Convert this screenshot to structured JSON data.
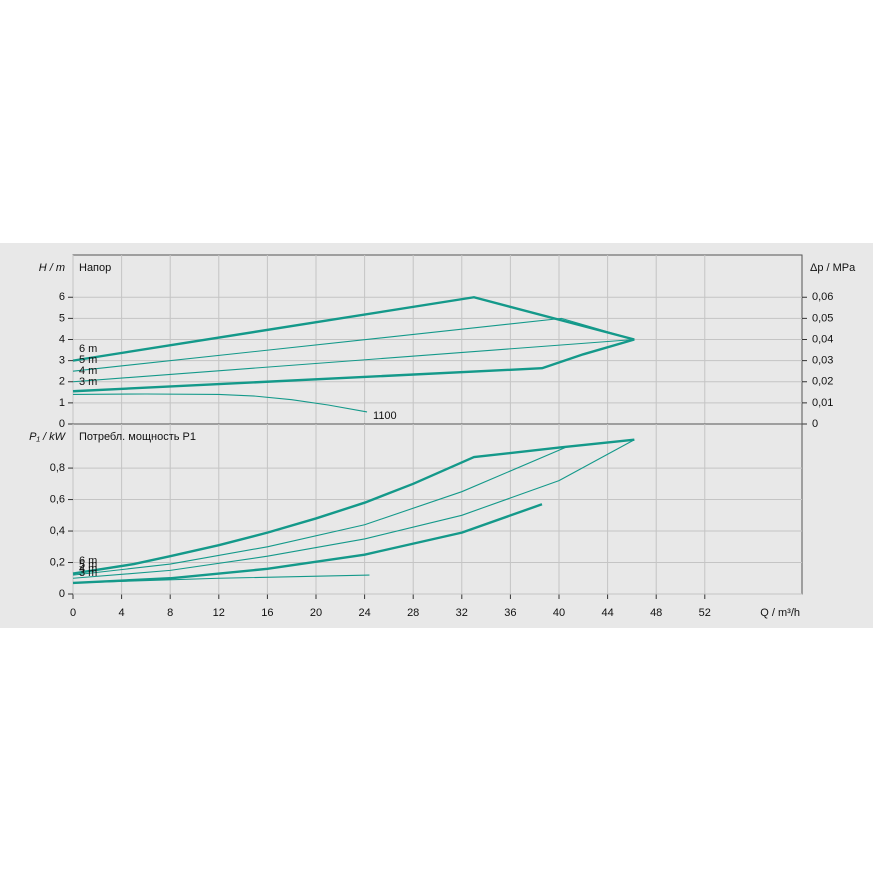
{
  "chart_data": [
    {
      "type": "line",
      "title": "Напор",
      "y_label": "H / m",
      "y2_label": "Δp / MPa",
      "xlim": [
        0,
        60
      ],
      "xticks": [
        0,
        4,
        8,
        12,
        16,
        20,
        24,
        28,
        32,
        36,
        40,
        44,
        48,
        52
      ],
      "ylim": [
        0,
        8
      ],
      "yticks": [
        0,
        1,
        2,
        3,
        4,
        5,
        6
      ],
      "y2lim": [
        0,
        0.08
      ],
      "y2ticks": [
        0,
        {
          "value": 0.01,
          "label": "0,01"
        },
        {
          "value": 0.02,
          "label": "0,02"
        },
        {
          "value": 0.03,
          "label": "0,03"
        },
        {
          "value": 0.04,
          "label": "0,04"
        },
        {
          "value": 0.05,
          "label": "0,05"
        },
        {
          "value": 0.06,
          "label": "0,06"
        }
      ],
      "grid": true,
      "series": [
        {
          "name": "6 m",
          "color": "#14998a",
          "thick": true,
          "x": [
            0,
            33,
            46.2
          ],
          "values": [
            3.0,
            6.0,
            4.0
          ]
        },
        {
          "name": "5 m",
          "color": "#14998a",
          "thick": false,
          "x": [
            0,
            40.2,
            46.2
          ],
          "values": [
            2.5,
            5.0,
            4.0
          ]
        },
        {
          "name": "4 m",
          "color": "#14998a",
          "thick": false,
          "x": [
            0,
            46.2
          ],
          "values": [
            2.0,
            4.0
          ]
        },
        {
          "name": "3 m",
          "color": "#14998a",
          "thick": true,
          "x": [
            0,
            38.6,
            42,
            46.2
          ],
          "values": [
            1.55,
            2.64,
            3.3,
            4.0
          ]
        },
        {
          "name": "1100",
          "color": "#14998a",
          "thick": false,
          "x": [
            0,
            6,
            12,
            15,
            18,
            21,
            24.2
          ],
          "values": [
            1.4,
            1.42,
            1.4,
            1.32,
            1.15,
            0.9,
            0.57
          ]
        }
      ]
    },
    {
      "type": "line",
      "title": "Потребл. мощность P1",
      "y_label": "P₁ / kW",
      "x_label": "Q / m³/h",
      "xlim": [
        0,
        60
      ],
      "xticks": [
        0,
        4,
        8,
        12,
        16,
        20,
        24,
        28,
        32,
        36,
        40,
        44,
        48,
        52
      ],
      "ylim": [
        0,
        1.08
      ],
      "yticks": [
        0,
        {
          "value": 0.2,
          "label": "0,2"
        },
        {
          "value": 0.4,
          "label": "0,4"
        },
        {
          "value": 0.6,
          "label": "0,6"
        },
        {
          "value": 0.8,
          "label": "0,8"
        }
      ],
      "grid": true,
      "series": [
        {
          "name": "6 m",
          "color": "#14998a",
          "thick": true,
          "x": [
            0,
            5,
            8,
            12,
            16,
            20,
            24,
            28,
            33,
            40,
            46.2
          ],
          "values": [
            0.13,
            0.19,
            0.24,
            0.31,
            0.39,
            0.48,
            0.58,
            0.7,
            0.87,
            0.93,
            0.98
          ]
        },
        {
          "name": "5 m",
          "color": "#14998a",
          "thick": false,
          "x": [
            0,
            8,
            16,
            24,
            32,
            40.5
          ],
          "values": [
            0.12,
            0.19,
            0.3,
            0.44,
            0.65,
            0.93
          ]
        },
        {
          "name": "4 m",
          "color": "#14998a",
          "thick": false,
          "x": [
            0,
            8,
            16,
            24,
            32,
            40,
            46.2
          ],
          "values": [
            0.1,
            0.15,
            0.24,
            0.35,
            0.5,
            0.72,
            0.98
          ]
        },
        {
          "name": "3 m",
          "color": "#14998a",
          "thick": true,
          "x": [
            0,
            8,
            16,
            24,
            32,
            38.6
          ],
          "values": [
            0.07,
            0.1,
            0.16,
            0.25,
            0.39,
            0.57
          ]
        },
        {
          "color": "#14998a",
          "thick": false,
          "x": [
            0,
            12,
            24.4
          ],
          "values": [
            0.07,
            0.1,
            0.12
          ]
        }
      ]
    }
  ]
}
